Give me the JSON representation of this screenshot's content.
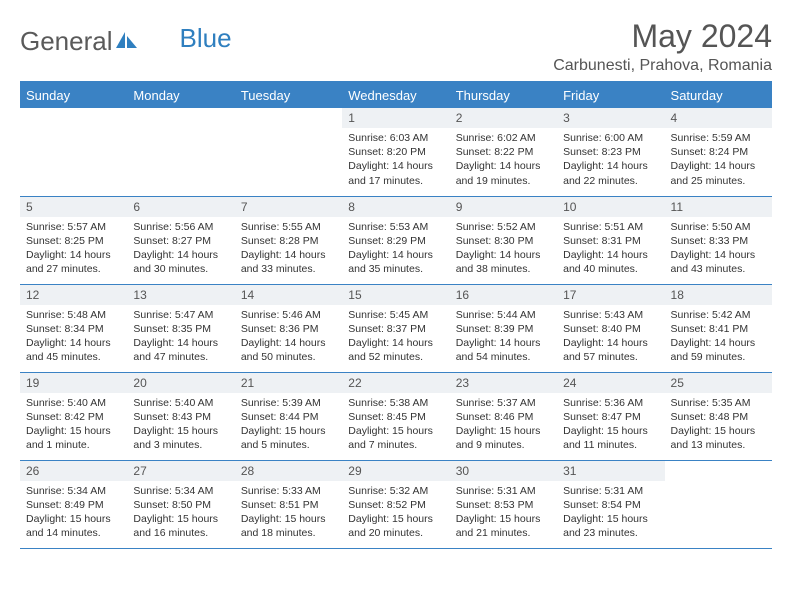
{
  "brand": {
    "part1": "General",
    "part2": "Blue"
  },
  "title": "May 2024",
  "location": "Carbunesti, Prahova, Romania",
  "colors": {
    "header_bg": "#3a82c4",
    "header_text": "#ffffff",
    "daynum_bg": "#eef1f4",
    "border": "#3a82c4",
    "title_color": "#555555",
    "text_color": "#333333"
  },
  "weekdays": [
    "Sunday",
    "Monday",
    "Tuesday",
    "Wednesday",
    "Thursday",
    "Friday",
    "Saturday"
  ],
  "weeks": [
    [
      {
        "n": "",
        "l1": "",
        "l2": "",
        "l3": "",
        "l4": ""
      },
      {
        "n": "",
        "l1": "",
        "l2": "",
        "l3": "",
        "l4": ""
      },
      {
        "n": "",
        "l1": "",
        "l2": "",
        "l3": "",
        "l4": ""
      },
      {
        "n": "1",
        "l1": "Sunrise: 6:03 AM",
        "l2": "Sunset: 8:20 PM",
        "l3": "Daylight: 14 hours",
        "l4": "and 17 minutes."
      },
      {
        "n": "2",
        "l1": "Sunrise: 6:02 AM",
        "l2": "Sunset: 8:22 PM",
        "l3": "Daylight: 14 hours",
        "l4": "and 19 minutes."
      },
      {
        "n": "3",
        "l1": "Sunrise: 6:00 AM",
        "l2": "Sunset: 8:23 PM",
        "l3": "Daylight: 14 hours",
        "l4": "and 22 minutes."
      },
      {
        "n": "4",
        "l1": "Sunrise: 5:59 AM",
        "l2": "Sunset: 8:24 PM",
        "l3": "Daylight: 14 hours",
        "l4": "and 25 minutes."
      }
    ],
    [
      {
        "n": "5",
        "l1": "Sunrise: 5:57 AM",
        "l2": "Sunset: 8:25 PM",
        "l3": "Daylight: 14 hours",
        "l4": "and 27 minutes."
      },
      {
        "n": "6",
        "l1": "Sunrise: 5:56 AM",
        "l2": "Sunset: 8:27 PM",
        "l3": "Daylight: 14 hours",
        "l4": "and 30 minutes."
      },
      {
        "n": "7",
        "l1": "Sunrise: 5:55 AM",
        "l2": "Sunset: 8:28 PM",
        "l3": "Daylight: 14 hours",
        "l4": "and 33 minutes."
      },
      {
        "n": "8",
        "l1": "Sunrise: 5:53 AM",
        "l2": "Sunset: 8:29 PM",
        "l3": "Daylight: 14 hours",
        "l4": "and 35 minutes."
      },
      {
        "n": "9",
        "l1": "Sunrise: 5:52 AM",
        "l2": "Sunset: 8:30 PM",
        "l3": "Daylight: 14 hours",
        "l4": "and 38 minutes."
      },
      {
        "n": "10",
        "l1": "Sunrise: 5:51 AM",
        "l2": "Sunset: 8:31 PM",
        "l3": "Daylight: 14 hours",
        "l4": "and 40 minutes."
      },
      {
        "n": "11",
        "l1": "Sunrise: 5:50 AM",
        "l2": "Sunset: 8:33 PM",
        "l3": "Daylight: 14 hours",
        "l4": "and 43 minutes."
      }
    ],
    [
      {
        "n": "12",
        "l1": "Sunrise: 5:48 AM",
        "l2": "Sunset: 8:34 PM",
        "l3": "Daylight: 14 hours",
        "l4": "and 45 minutes."
      },
      {
        "n": "13",
        "l1": "Sunrise: 5:47 AM",
        "l2": "Sunset: 8:35 PM",
        "l3": "Daylight: 14 hours",
        "l4": "and 47 minutes."
      },
      {
        "n": "14",
        "l1": "Sunrise: 5:46 AM",
        "l2": "Sunset: 8:36 PM",
        "l3": "Daylight: 14 hours",
        "l4": "and 50 minutes."
      },
      {
        "n": "15",
        "l1": "Sunrise: 5:45 AM",
        "l2": "Sunset: 8:37 PM",
        "l3": "Daylight: 14 hours",
        "l4": "and 52 minutes."
      },
      {
        "n": "16",
        "l1": "Sunrise: 5:44 AM",
        "l2": "Sunset: 8:39 PM",
        "l3": "Daylight: 14 hours",
        "l4": "and 54 minutes."
      },
      {
        "n": "17",
        "l1": "Sunrise: 5:43 AM",
        "l2": "Sunset: 8:40 PM",
        "l3": "Daylight: 14 hours",
        "l4": "and 57 minutes."
      },
      {
        "n": "18",
        "l1": "Sunrise: 5:42 AM",
        "l2": "Sunset: 8:41 PM",
        "l3": "Daylight: 14 hours",
        "l4": "and 59 minutes."
      }
    ],
    [
      {
        "n": "19",
        "l1": "Sunrise: 5:40 AM",
        "l2": "Sunset: 8:42 PM",
        "l3": "Daylight: 15 hours",
        "l4": "and 1 minute."
      },
      {
        "n": "20",
        "l1": "Sunrise: 5:40 AM",
        "l2": "Sunset: 8:43 PM",
        "l3": "Daylight: 15 hours",
        "l4": "and 3 minutes."
      },
      {
        "n": "21",
        "l1": "Sunrise: 5:39 AM",
        "l2": "Sunset: 8:44 PM",
        "l3": "Daylight: 15 hours",
        "l4": "and 5 minutes."
      },
      {
        "n": "22",
        "l1": "Sunrise: 5:38 AM",
        "l2": "Sunset: 8:45 PM",
        "l3": "Daylight: 15 hours",
        "l4": "and 7 minutes."
      },
      {
        "n": "23",
        "l1": "Sunrise: 5:37 AM",
        "l2": "Sunset: 8:46 PM",
        "l3": "Daylight: 15 hours",
        "l4": "and 9 minutes."
      },
      {
        "n": "24",
        "l1": "Sunrise: 5:36 AM",
        "l2": "Sunset: 8:47 PM",
        "l3": "Daylight: 15 hours",
        "l4": "and 11 minutes."
      },
      {
        "n": "25",
        "l1": "Sunrise: 5:35 AM",
        "l2": "Sunset: 8:48 PM",
        "l3": "Daylight: 15 hours",
        "l4": "and 13 minutes."
      }
    ],
    [
      {
        "n": "26",
        "l1": "Sunrise: 5:34 AM",
        "l2": "Sunset: 8:49 PM",
        "l3": "Daylight: 15 hours",
        "l4": "and 14 minutes."
      },
      {
        "n": "27",
        "l1": "Sunrise: 5:34 AM",
        "l2": "Sunset: 8:50 PM",
        "l3": "Daylight: 15 hours",
        "l4": "and 16 minutes."
      },
      {
        "n": "28",
        "l1": "Sunrise: 5:33 AM",
        "l2": "Sunset: 8:51 PM",
        "l3": "Daylight: 15 hours",
        "l4": "and 18 minutes."
      },
      {
        "n": "29",
        "l1": "Sunrise: 5:32 AM",
        "l2": "Sunset: 8:52 PM",
        "l3": "Daylight: 15 hours",
        "l4": "and 20 minutes."
      },
      {
        "n": "30",
        "l1": "Sunrise: 5:31 AM",
        "l2": "Sunset: 8:53 PM",
        "l3": "Daylight: 15 hours",
        "l4": "and 21 minutes."
      },
      {
        "n": "31",
        "l1": "Sunrise: 5:31 AM",
        "l2": "Sunset: 8:54 PM",
        "l3": "Daylight: 15 hours",
        "l4": "and 23 minutes."
      },
      {
        "n": "",
        "l1": "",
        "l2": "",
        "l3": "",
        "l4": ""
      }
    ]
  ]
}
